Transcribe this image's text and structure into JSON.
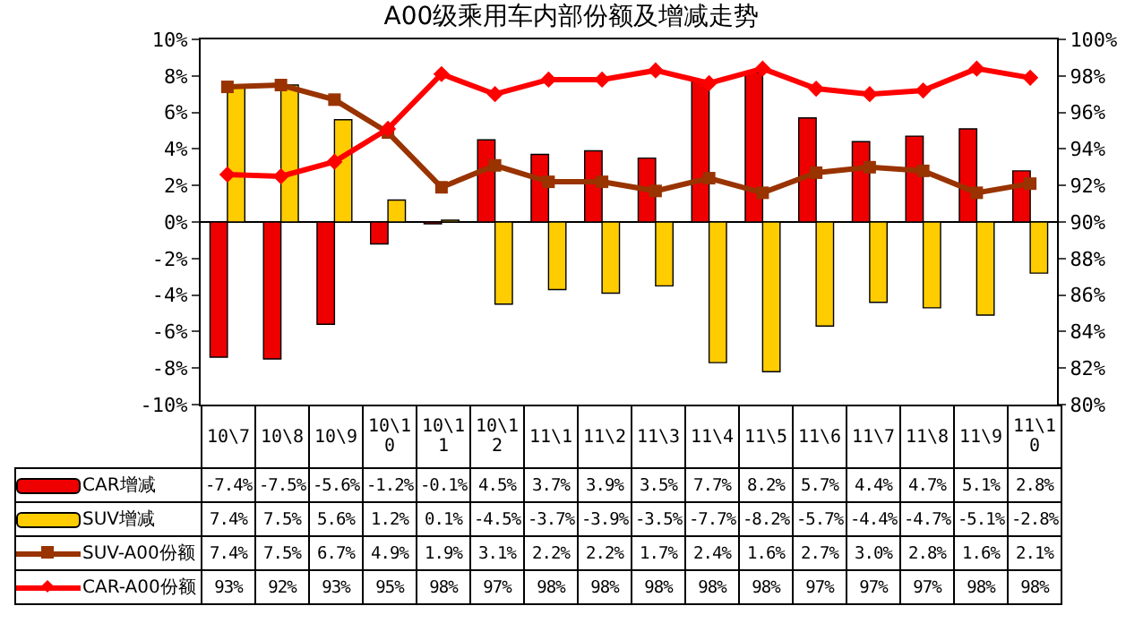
{
  "chart_data": {
    "type": "bar",
    "title": "A00级乘用车内部份额及增减走势",
    "categories": [
      "10\\7",
      "10\\8",
      "10\\9",
      "10\\10",
      "10\\11",
      "10\\12",
      "11\\1",
      "11\\2",
      "11\\3",
      "11\\4",
      "11\\5",
      "11\\6",
      "11\\7",
      "11\\8",
      "11\\9",
      "11\\10"
    ],
    "series": [
      {
        "name": "CAR增减",
        "color": "#ee0000",
        "values": [
          -7.4,
          -7.5,
          -5.6,
          -1.2,
          -0.1,
          4.5,
          3.7,
          3.9,
          3.5,
          7.7,
          8.2,
          5.7,
          4.4,
          4.7,
          5.1,
          2.8
        ],
        "value_labels": [
          "-7.4%",
          "-7.5%",
          "-5.6%",
          "-1.2%",
          "-0.1%",
          "4.5%",
          "3.7%",
          "3.9%",
          "3.5%",
          "7.7%",
          "8.2%",
          "5.7%",
          "4.4%",
          "4.7%",
          "5.1%",
          "2.8%"
        ]
      },
      {
        "name": "SUV增减",
        "color": "#ffcc00",
        "values": [
          7.4,
          7.5,
          5.6,
          1.2,
          0.1,
          -4.5,
          -3.7,
          -3.9,
          -3.5,
          -7.7,
          -8.2,
          -5.7,
          -4.4,
          -4.7,
          -5.1,
          -2.8
        ],
        "value_labels": [
          "7.4%",
          "7.5%",
          "5.6%",
          "1.2%",
          "0.1%",
          "-4.5%",
          "-3.7%",
          "-3.9%",
          "-3.5%",
          "-7.7%",
          "-8.2%",
          "-5.7%",
          "-4.4%",
          "-4.7%",
          "-5.1%",
          "-2.8%"
        ]
      },
      {
        "name": "SUV-A00份额",
        "type": "line",
        "marker": "square",
        "color": "#993300",
        "values": [
          7.4,
          7.5,
          6.7,
          4.9,
          1.9,
          3.1,
          2.2,
          2.2,
          1.7,
          2.4,
          1.6,
          2.7,
          3.0,
          2.8,
          1.6,
          2.1
        ],
        "value_labels": [
          "7.4%",
          "7.5%",
          "6.7%",
          "4.9%",
          "1.9%",
          "3.1%",
          "2.2%",
          "2.2%",
          "1.7%",
          "2.4%",
          "1.6%",
          "2.7%",
          "3.0%",
          "2.8%",
          "1.6%",
          "2.1%"
        ]
      },
      {
        "name": "CAR-A00份额",
        "type": "line",
        "marker": "diamond",
        "axis": "y2",
        "color": "#ff0000",
        "values": [
          92.6,
          92.5,
          93.3,
          95.1,
          98.1,
          97.0,
          97.8,
          97.8,
          98.3,
          97.6,
          98.4,
          97.3,
          97.0,
          97.2,
          98.4,
          97.9
        ],
        "value_labels": [
          "93%",
          "92%",
          "93%",
          "95%",
          "98%",
          "97%",
          "98%",
          "98%",
          "98%",
          "98%",
          "98%",
          "97%",
          "97%",
          "97%",
          "98%",
          "98%"
        ]
      }
    ],
    "ylim": [
      -10,
      10
    ],
    "yticks": [
      {
        "value": -10,
        "label": "-10%"
      },
      {
        "value": -8,
        "label": "-8%"
      },
      {
        "value": -6,
        "label": "-6%"
      },
      {
        "value": -4,
        "label": "-4%"
      },
      {
        "value": -2,
        "label": "-2%"
      },
      {
        "value": 0,
        "label": "0%"
      },
      {
        "value": 2,
        "label": "2%"
      },
      {
        "value": 4,
        "label": "4%"
      },
      {
        "value": 6,
        "label": "6%"
      },
      {
        "value": 8,
        "label": "8%"
      },
      {
        "value": 10,
        "label": "10%"
      }
    ],
    "y2lim": [
      80,
      100
    ],
    "y2ticks": [
      {
        "value": 80,
        "label": "80%"
      },
      {
        "value": 82,
        "label": "82%"
      },
      {
        "value": 84,
        "label": "84%"
      },
      {
        "value": 86,
        "label": "86%"
      },
      {
        "value": 88,
        "label": "88%"
      },
      {
        "value": 90,
        "label": "90%"
      },
      {
        "value": 92,
        "label": "92%"
      },
      {
        "value": 94,
        "label": "94%"
      },
      {
        "value": 96,
        "label": "96%"
      },
      {
        "value": 98,
        "label": "98%"
      },
      {
        "value": 100,
        "label": "100%"
      }
    ],
    "legend": "bottom"
  }
}
